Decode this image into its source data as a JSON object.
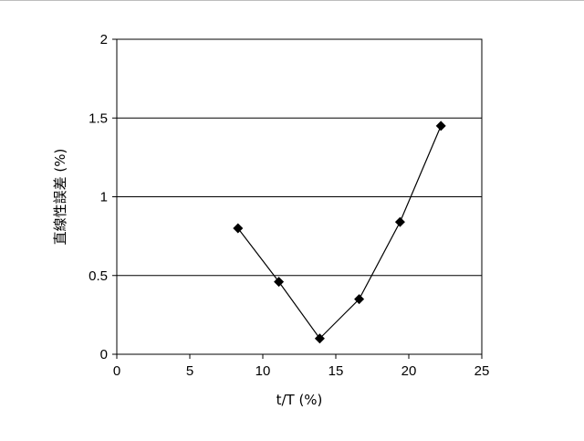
{
  "chart_data": {
    "type": "scatter",
    "title": "",
    "xlabel": "t/T (%)",
    "ylabel": "直線性誤差 (%)",
    "xlim": [
      0,
      25
    ],
    "ylim": [
      0,
      2
    ],
    "xticks": [
      0,
      5,
      10,
      15,
      20,
      25
    ],
    "yticks": [
      0,
      0.5,
      1,
      1.5,
      2
    ],
    "xtick_labels": [
      "0",
      "5",
      "10",
      "15",
      "20",
      "25"
    ],
    "ytick_labels": [
      "0",
      "0.5",
      "1",
      "1.5",
      "2"
    ],
    "grid": "horizontal",
    "marker": "diamond",
    "line": "straight segments connecting points",
    "series": [
      {
        "x": [
          8.3,
          11.1,
          13.9,
          16.6,
          19.4,
          22.2
        ],
        "y": [
          0.8,
          0.46,
          0.1,
          0.35,
          0.84,
          1.45
        ]
      }
    ],
    "colors": {
      "marker": "#000000",
      "line": "#000000",
      "grid": "#000000"
    }
  }
}
